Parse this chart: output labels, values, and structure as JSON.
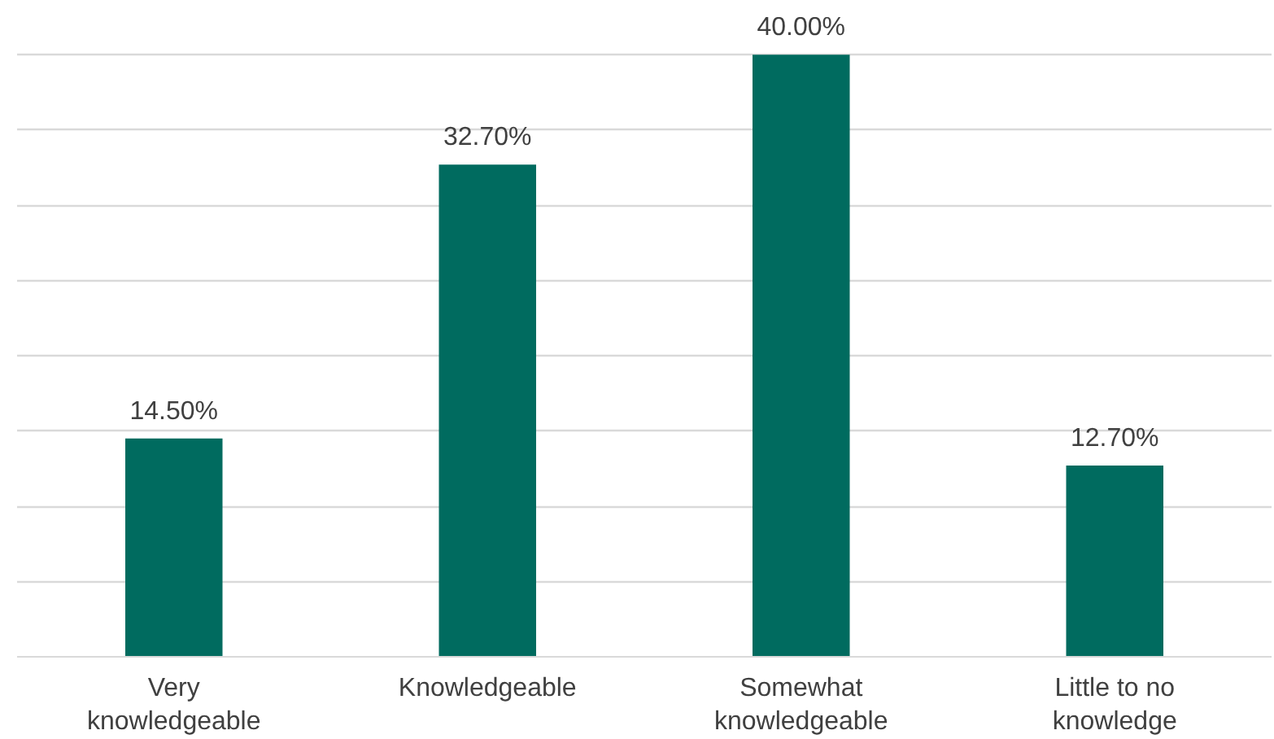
{
  "chart_data": {
    "type": "bar",
    "categories": [
      "Very knowledgeable",
      "Knowledgeable",
      "Somewhat knowledgeable",
      "Little to no knowledge"
    ],
    "values": [
      14.5,
      32.7,
      40.0,
      12.7
    ],
    "value_labels": [
      "14.50%",
      "32.70%",
      "40.00%",
      "12.70%"
    ],
    "color": "#006b5f",
    "tick_labels": "x",
    "grid": "y"
  }
}
